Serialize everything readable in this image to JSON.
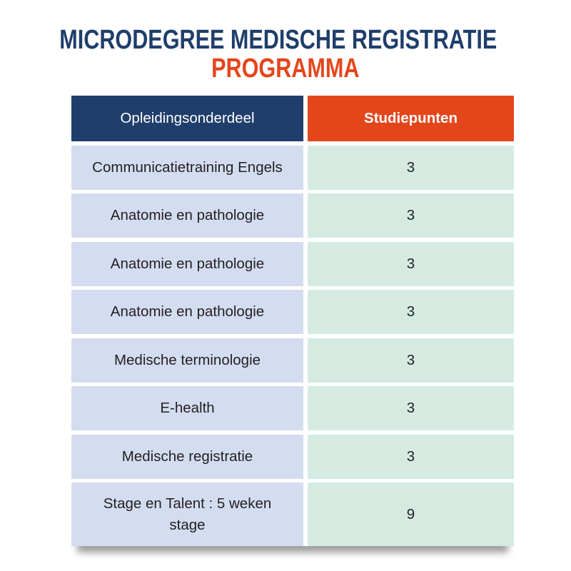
{
  "title": {
    "line1": "MICRODEGREE MEDISCHE REGISTRATIE",
    "line2": "PROGRAMMA"
  },
  "colors": {
    "navy": "#1f3e6b",
    "orange": "#e4461c",
    "left_bg": "#d4dcf0",
    "right_bg": "#d5ebe2"
  },
  "table": {
    "headers": {
      "course": "Opleidingsonderdeel",
      "credits": "Studiepunten"
    },
    "rows": [
      {
        "course": "Communicatietraining Engels",
        "credits": "3"
      },
      {
        "course": "Anatomie en pathologie",
        "credits": "3"
      },
      {
        "course": "Anatomie en pathologie",
        "credits": "3"
      },
      {
        "course": "Anatomie en pathologie",
        "credits": "3"
      },
      {
        "course": "Medische terminologie",
        "credits": "3"
      },
      {
        "course": "E-health",
        "credits": "3"
      },
      {
        "course": "Medische registratie",
        "credits": "3"
      },
      {
        "course": "Stage en Talent : 5 weken stage",
        "credits": "9"
      }
    ]
  }
}
